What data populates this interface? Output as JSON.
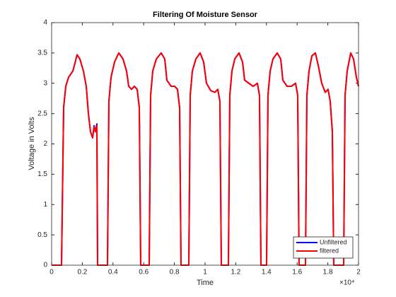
{
  "chart_data": {
    "type": "line",
    "title": "Filtering Of Moisture Sensor",
    "xlabel": "Time",
    "ylabel": "Voltage in Volts",
    "x_exponent": "×10⁴",
    "xlim": [
      0,
      20000
    ],
    "ylim": [
      0,
      4
    ],
    "xticks": [
      0,
      {
        "value": 2000,
        "label": "0.2"
      },
      {
        "value": 4000,
        "label": "0.4"
      },
      {
        "value": 6000,
        "label": "0.6"
      },
      {
        "value": 8000,
        "label": "0.8"
      },
      {
        "value": 10000,
        "label": "1"
      },
      {
        "value": 12000,
        "label": "1.2"
      },
      {
        "value": 14000,
        "label": "1.4"
      },
      {
        "value": 16000,
        "label": "1.6"
      },
      {
        "value": 18000,
        "label": "1.8"
      },
      {
        "value": 20000,
        "label": "2"
      }
    ],
    "yticks": [
      0,
      0.5,
      1,
      1.5,
      2,
      2.5,
      3,
      3.5,
      4
    ],
    "grid": false,
    "legend": "lower right",
    "x": [
      0,
      645,
      783,
      922,
      1106,
      1382,
      1659,
      1843,
      2074,
      2258,
      2396,
      2534,
      2673,
      2765,
      2857,
      2949,
      2995,
      3640,
      3732,
      3871,
      4101,
      4378,
      4654,
      4884,
      5023,
      5207,
      5391,
      5576,
      5714,
      5806,
      6359,
      6451,
      6589,
      6820,
      7142,
      7373,
      7511,
      7788,
      8018,
      8202,
      8341,
      8433,
      8940,
      9032,
      9170,
      9400,
      9677,
      9907,
      10092,
      10368,
      10644,
      10829,
      10967,
      11059,
      11520,
      11612,
      11750,
      11935,
      12211,
      12442,
      12580,
      12856,
      13133,
      13409,
      13547,
      13640,
      14008,
      14100,
      14239,
      14423,
      14700,
      14930,
      15068,
      15345,
      15621,
      15898,
      16036,
      16128,
      16543,
      16635,
      16773,
      16958,
      17188,
      17372,
      17603,
      17833,
      18017,
      18156,
      18294,
      18386,
      19031,
      19123,
      19261,
      19492,
      19676,
      19860,
      20000
    ],
    "series": [
      {
        "name": "Unfiltered",
        "color": "#0000ff",
        "values": [
          0,
          0,
          2.6,
          2.95,
          3.1,
          3.2,
          3.47,
          3.4,
          3.2,
          2.95,
          2.5,
          2.2,
          2.1,
          2.3,
          2.2,
          2.33,
          0,
          0,
          2.7,
          3.1,
          3.35,
          3.5,
          3.4,
          3.2,
          2.95,
          2.9,
          2.95,
          2.9,
          2.6,
          0,
          0,
          2.8,
          3.2,
          3.4,
          3.5,
          3.4,
          3.05,
          2.95,
          2.95,
          2.9,
          2.6,
          0,
          0,
          2.8,
          3.2,
          3.4,
          3.5,
          3.35,
          3.0,
          2.88,
          2.85,
          2.9,
          2.7,
          0,
          0,
          2.8,
          3.2,
          3.4,
          3.5,
          3.35,
          3.05,
          3.0,
          2.95,
          3.0,
          2.8,
          0,
          0,
          2.8,
          3.2,
          3.4,
          3.5,
          3.4,
          3.05,
          2.95,
          2.95,
          3.0,
          2.8,
          0,
          0,
          2.8,
          3.2,
          3.45,
          3.5,
          3.3,
          3.0,
          2.85,
          2.9,
          2.7,
          2.2,
          0,
          0,
          2.8,
          3.2,
          3.5,
          3.4,
          3.1,
          2.95
        ]
      },
      {
        "name": "filtered",
        "color": "#ff0000",
        "values": [
          0,
          0,
          2.6,
          2.95,
          3.1,
          3.2,
          3.47,
          3.4,
          3.2,
          2.95,
          2.5,
          2.2,
          2.1,
          2.28,
          2.2,
          2.3,
          0,
          0,
          2.7,
          3.1,
          3.35,
          3.5,
          3.4,
          3.2,
          2.95,
          2.9,
          2.95,
          2.9,
          2.6,
          0,
          0,
          2.8,
          3.2,
          3.4,
          3.5,
          3.4,
          3.05,
          2.95,
          2.95,
          2.9,
          2.6,
          0,
          0,
          2.8,
          3.2,
          3.4,
          3.5,
          3.35,
          3.0,
          2.88,
          2.85,
          2.9,
          2.7,
          0,
          0,
          2.8,
          3.2,
          3.4,
          3.5,
          3.35,
          3.05,
          3.0,
          2.95,
          3.0,
          2.8,
          0,
          0,
          2.8,
          3.2,
          3.4,
          3.5,
          3.4,
          3.05,
          2.95,
          2.95,
          3.0,
          2.8,
          0,
          0,
          2.8,
          3.2,
          3.45,
          3.5,
          3.3,
          3.0,
          2.85,
          2.9,
          2.7,
          2.2,
          0,
          0,
          2.8,
          3.2,
          3.5,
          3.4,
          3.1,
          2.95
        ]
      }
    ]
  }
}
